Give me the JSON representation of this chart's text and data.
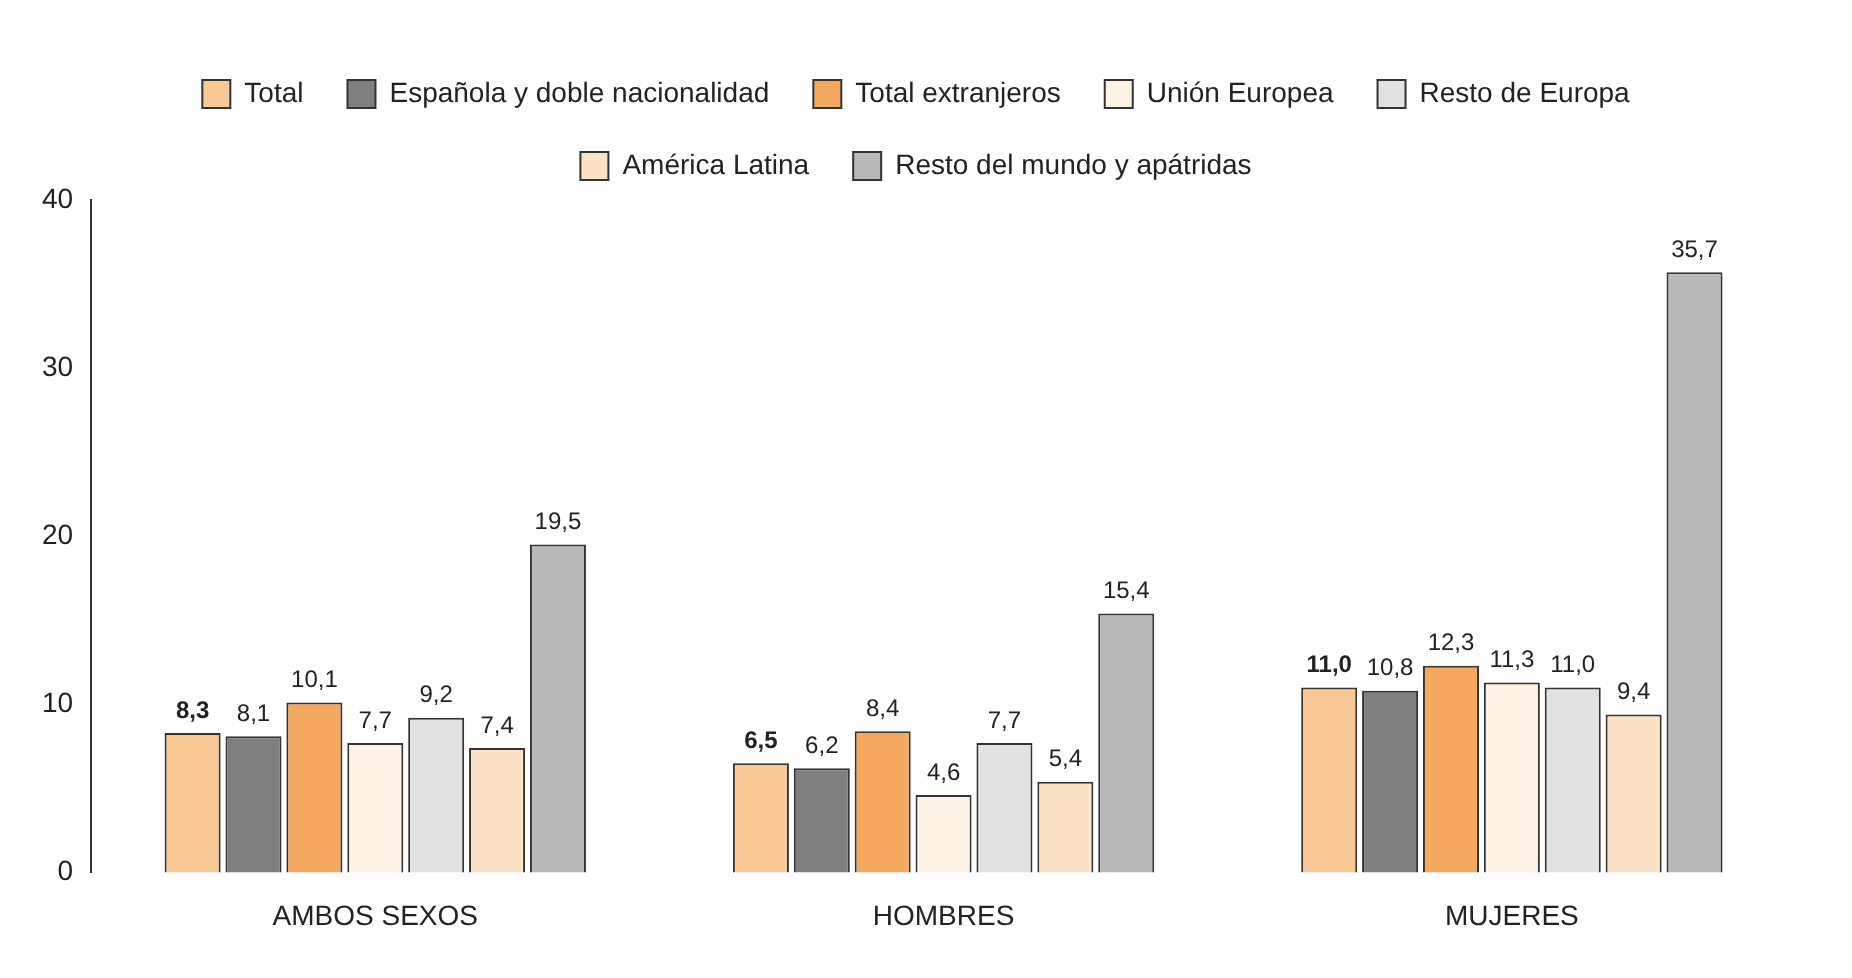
{
  "chart_data": {
    "type": "bar",
    "categories": [
      "AMBOS SEXOS",
      "HOMBRES",
      "MUJERES"
    ],
    "series": [
      {
        "name": "Total",
        "color": "#f9c894",
        "values": [
          8.3,
          6.5,
          11.0
        ],
        "value_labels": [
          "8,3",
          "6,5",
          "11,0"
        ]
      },
      {
        "name": "Española y doble nacionalidad",
        "color": "#7f7f7f",
        "values": [
          8.1,
          6.2,
          10.8
        ],
        "value_labels": [
          "8,1",
          "6,2",
          "10,8"
        ]
      },
      {
        "name": "Total extranjeros",
        "color": "#f5a95e",
        "values": [
          10.1,
          8.4,
          12.3
        ],
        "value_labels": [
          "10,1",
          "8,4",
          "12,3"
        ]
      },
      {
        "name": "Unión Europea",
        "color": "#fdf2e4",
        "values": [
          7.7,
          4.6,
          11.3
        ],
        "value_labels": [
          "7,7",
          "4,6",
          "11,3"
        ]
      },
      {
        "name": "Resto de Europa",
        "color": "#e2e2e2",
        "values": [
          9.2,
          7.7,
          11.0
        ],
        "value_labels": [
          "9,2",
          "7,7",
          "11,0"
        ]
      },
      {
        "name": "América Latina",
        "color": "#fde3c6",
        "values": [
          7.4,
          5.4,
          9.4
        ],
        "value_labels": [
          "7,4",
          "5,4",
          "9,4"
        ]
      },
      {
        "name": "Resto del mundo y apátridas",
        "color": "#b9b9b9",
        "values": [
          19.5,
          15.4,
          35.7
        ],
        "value_labels": [
          "19,5",
          "15,4",
          "35,7"
        ]
      }
    ],
    "ylim": [
      0,
      40
    ],
    "yticks": [
      0,
      10,
      20,
      30,
      40
    ],
    "grid": false,
    "legend": "top"
  }
}
